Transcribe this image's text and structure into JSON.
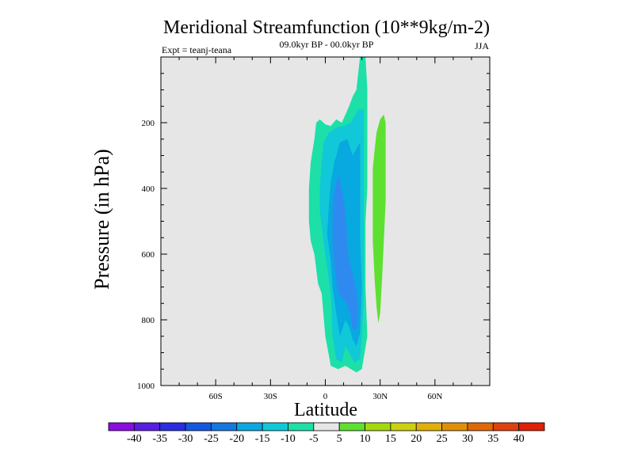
{
  "chart_data": {
    "type": "contour",
    "title": "Meridional Streamfunction (10**9kg/m-2)",
    "subtitle": "09.0kyr BP - 00.0kyr BP",
    "experiment_label": "Expt = teanj-teana",
    "season": "JJA",
    "xlabel": "Latitude",
    "ylabel": "Pressure (in hPa)",
    "xlim": [
      -90,
      90
    ],
    "ylim": [
      1000,
      0
    ],
    "y_inverted": true,
    "x_ticks": [
      {
        "value": -60,
        "label": "60S"
      },
      {
        "value": -30,
        "label": "30S"
      },
      {
        "value": 0,
        "label": "0"
      },
      {
        "value": 30,
        "label": "30N"
      },
      {
        "value": 60,
        "label": "60N"
      }
    ],
    "y_ticks": [
      {
        "value": 200,
        "label": "200"
      },
      {
        "value": 400,
        "label": "400"
      },
      {
        "value": 600,
        "label": "600"
      },
      {
        "value": 800,
        "label": "800"
      },
      {
        "value": 1000,
        "label": "1000"
      }
    ],
    "background_color": "#e6e6e6",
    "contour_regions": [
      {
        "level": "-10 to -5",
        "color": "#1ce0a8",
        "boundary": [
          [
            7,
            950
          ],
          [
            3,
            940
          ],
          [
            0,
            850
          ],
          [
            -2,
            720
          ],
          [
            -4,
            690
          ],
          [
            -6,
            600
          ],
          [
            -8,
            560
          ],
          [
            -9,
            500
          ],
          [
            -9,
            400
          ],
          [
            -8,
            320
          ],
          [
            -6,
            250
          ],
          [
            -5,
            200
          ],
          [
            -3,
            190
          ],
          [
            0,
            205
          ],
          [
            3,
            210
          ],
          [
            6,
            190
          ],
          [
            9,
            200
          ],
          [
            13,
            150
          ],
          [
            15,
            120
          ],
          [
            17,
            100
          ],
          [
            19,
            0
          ],
          [
            22,
            0
          ],
          [
            23,
            100
          ],
          [
            23,
            250
          ],
          [
            23,
            400
          ],
          [
            22,
            500
          ],
          [
            22,
            700
          ],
          [
            23,
            850
          ],
          [
            20,
            950
          ],
          [
            17,
            960
          ],
          [
            14,
            950
          ],
          [
            11,
            940
          ]
        ]
      },
      {
        "level": "-15 to -10",
        "color": "#10c8d8",
        "boundary": [
          [
            9,
            930
          ],
          [
            6,
            920
          ],
          [
            4,
            850
          ],
          [
            3,
            720
          ],
          [
            1,
            640
          ],
          [
            -1,
            560
          ],
          [
            -3,
            470
          ],
          [
            -3,
            400
          ],
          [
            -2,
            320
          ],
          [
            -1,
            260
          ],
          [
            2,
            230
          ],
          [
            6,
            215
          ],
          [
            10,
            210
          ],
          [
            14,
            200
          ],
          [
            18,
            160
          ],
          [
            21,
            160
          ],
          [
            21,
            300
          ],
          [
            21,
            450
          ],
          [
            21,
            600
          ],
          [
            21,
            740
          ],
          [
            20,
            850
          ],
          [
            19,
            920
          ],
          [
            16,
            930
          ],
          [
            13,
            900
          ],
          [
            11,
            880
          ]
        ]
      },
      {
        "level": "-20 to -15",
        "color": "#08a8e0",
        "boundary": [
          [
            8,
            850
          ],
          [
            6,
            780
          ],
          [
            4,
            700
          ],
          [
            3,
            620
          ],
          [
            1,
            540
          ],
          [
            2,
            450
          ],
          [
            3,
            380
          ],
          [
            5,
            320
          ],
          [
            8,
            260
          ],
          [
            12,
            250
          ],
          [
            15,
            300
          ],
          [
            19,
            260
          ],
          [
            19,
            400
          ],
          [
            19,
            550
          ],
          [
            20,
            700
          ],
          [
            19,
            840
          ],
          [
            17,
            880
          ],
          [
            15,
            860
          ],
          [
            13,
            820
          ],
          [
            11,
            800
          ]
        ]
      },
      {
        "level": "-25 to -20",
        "color": "#2f8af0",
        "boundary": [
          [
            7,
            720
          ],
          [
            5,
            640
          ],
          [
            4,
            560
          ],
          [
            4,
            480
          ],
          [
            5,
            410
          ],
          [
            7,
            360
          ],
          [
            9,
            400
          ],
          [
            11,
            470
          ],
          [
            12,
            560
          ],
          [
            13,
            620
          ],
          [
            15,
            660
          ],
          [
            17,
            710
          ],
          [
            18,
            780
          ],
          [
            17,
            830
          ],
          [
            15,
            830
          ],
          [
            14,
            790
          ],
          [
            12,
            750
          ],
          [
            10,
            740
          ]
        ]
      },
      {
        "level": "5 to 10",
        "color": "#5ee030",
        "boundary": [
          [
            27,
            280
          ],
          [
            28,
            230
          ],
          [
            30,
            190
          ],
          [
            32,
            175
          ],
          [
            33,
            200
          ],
          [
            33,
            300
          ],
          [
            33,
            440
          ],
          [
            32,
            560
          ],
          [
            31,
            680
          ],
          [
            30,
            780
          ],
          [
            29,
            810
          ],
          [
            28,
            760
          ],
          [
            27,
            680
          ],
          [
            26,
            560
          ],
          [
            26,
            440
          ],
          [
            26,
            340
          ]
        ]
      }
    ],
    "colorbar": {
      "levels": [
        "-40",
        "-35",
        "-30",
        "-25",
        "-20",
        "-15",
        "-10",
        "-5",
        "5",
        "10",
        "15",
        "20",
        "25",
        "30",
        "35",
        "40"
      ],
      "colors": [
        "#8a0ee0",
        "#5a1ee0",
        "#2a2ee0",
        "#1458e0",
        "#1478e0",
        "#0aa8e0",
        "#10c8d8",
        "#1ce0a8",
        "#e6e6e6",
        "#5ee030",
        "#a6d810",
        "#ccd010",
        "#e0b008",
        "#e09008",
        "#e06808",
        "#e04010",
        "#e02008"
      ]
    }
  }
}
